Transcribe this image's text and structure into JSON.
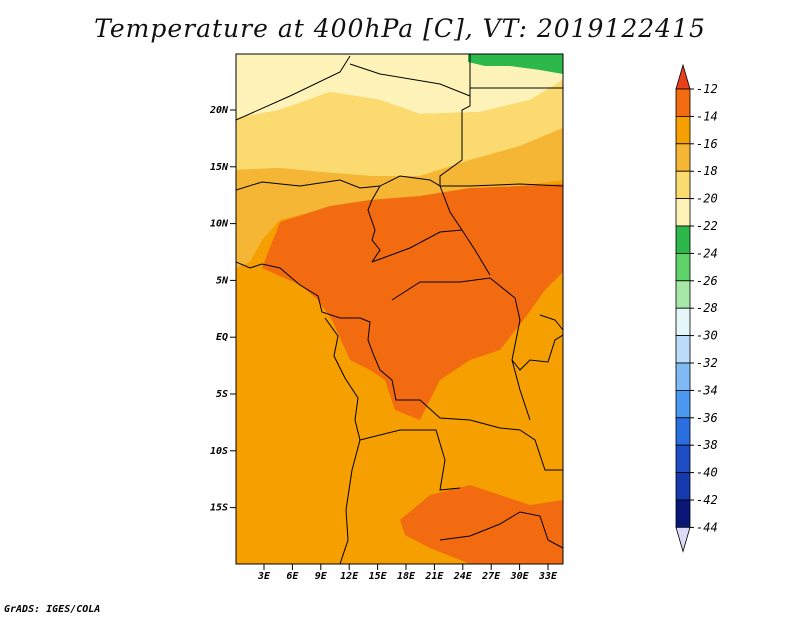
{
  "title": "Temperature at 400hPa [C], VT: 2019122415",
  "credit": "GrADS: IGES/COLA",
  "map": {
    "lat_labels": [
      "20N",
      "15N",
      "10N",
      "5N",
      "EQ",
      "5S",
      "10S",
      "15S"
    ],
    "lon_labels": [
      "3E",
      "6E",
      "9E",
      "12E",
      "15E",
      "18E",
      "21E",
      "24E",
      "27E",
      "30E",
      "33E"
    ]
  },
  "colorbar": {
    "labels": [
      "-12",
      "-14",
      "-16",
      "-18",
      "-20",
      "-22",
      "-24",
      "-26",
      "-28",
      "-30",
      "-32",
      "-34",
      "-36",
      "-38",
      "-40",
      "-42",
      "-44"
    ],
    "colors": [
      "#e8401a",
      "#f26b10",
      "#f5a000",
      "#f5b636",
      "#fbda70",
      "#fdf3b8",
      "#2cb84a",
      "#5fd26a",
      "#a7e8a8",
      "#e4f6f8",
      "#bcdcfb",
      "#7fbaf5",
      "#4a98ef",
      "#2a6ee0",
      "#1e4ec6",
      "#163aae",
      "#0a1777",
      "#dcdcf8"
    ]
  },
  "colors": {
    "bg_orange": "#f5a000",
    "warm_orange": "#f26b10",
    "light_orange": "#f5b636",
    "pale_yellow": "#fbda70",
    "cream": "#fdf3b8",
    "green": "#2cb84a",
    "border": "#000000"
  }
}
